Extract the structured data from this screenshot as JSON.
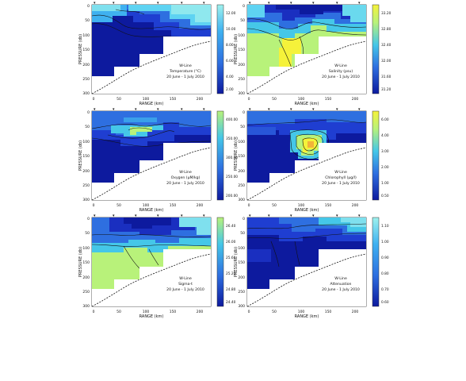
{
  "chart_data": [
    {
      "type": "heatmap",
      "name": "temperature",
      "ylabel": "PRESSURE (db)",
      "xlabel": "RANGE (km)",
      "annotation": [
        "W-Line",
        "Temperature (°C)",
        "20 June - 1 July 2010"
      ],
      "xticks": [
        "0",
        "50",
        "100",
        "150",
        "200"
      ],
      "yticks": [
        "0",
        "50",
        "100",
        "150",
        "200",
        "250",
        "300"
      ],
      "colorbar_ticks": [
        "12.00",
        "10.00",
        "8.00",
        "6.00",
        "4.00",
        "2.00"
      ],
      "colorscale": [
        "#0d1a9e",
        "#2e6fe0",
        "#3fb1f0",
        "#9ef2ee"
      ],
      "xlim": [
        0,
        220
      ],
      "ylim": [
        0,
        300
      ]
    },
    {
      "type": "heatmap",
      "name": "salinity",
      "ylabel": "PRESSURE (db)",
      "xlabel": "RANGE (km)",
      "annotation": [
        "W-Line",
        "Salinity (psu)",
        "20 June - 1 July 2010"
      ],
      "xticks": [
        "0",
        "50",
        "100",
        "150",
        "200"
      ],
      "yticks": [
        "0",
        "50",
        "100",
        "150",
        "200",
        "250",
        "300"
      ],
      "colorbar_ticks": [
        "33.20",
        "32.80",
        "32.40",
        "32.00",
        "31.60",
        "31.20"
      ],
      "colorscale": [
        "#0d1a9e",
        "#2e6fe0",
        "#45c7e8",
        "#b8f27a",
        "#f5f23a"
      ],
      "xlim": [
        0,
        220
      ],
      "ylim": [
        0,
        300
      ]
    },
    {
      "type": "heatmap",
      "name": "oxygen",
      "ylabel": "PRESSURE (db)",
      "xlabel": "RANGE (km)",
      "annotation": [
        "W-Line",
        "Oxygen (µM/kg)",
        "20 June - 1 July 2010"
      ],
      "xticks": [
        "0",
        "50",
        "100",
        "150",
        "200"
      ],
      "yticks": [
        "0",
        "50",
        "100",
        "150",
        "200",
        "250",
        "300"
      ],
      "colorbar_ticks": [
        "400.00",
        "350.00",
        "300.00",
        "250.00",
        "200.00"
      ],
      "colorscale": [
        "#0d1a9e",
        "#2e6fe0",
        "#45c7e8",
        "#b8f27a"
      ],
      "xlim": [
        0,
        220
      ],
      "ylim": [
        0,
        300
      ]
    },
    {
      "type": "heatmap",
      "name": "chlorophyll",
      "ylabel": "PRESSURE (db)",
      "xlabel": "RANGE (km)",
      "annotation": [
        "W-Line",
        "Chlorophyll (µg/l)",
        "20 June - 1 July 2010"
      ],
      "xticks": [
        "0",
        "50",
        "100",
        "150",
        "200"
      ],
      "yticks": [
        "0",
        "50",
        "100",
        "150",
        "200",
        "250",
        "300"
      ],
      "colorbar_ticks": [
        "6.00",
        "4.00",
        "3.00",
        "2.00",
        "1.00",
        "0.50"
      ],
      "colorscale": [
        "#0d1a9e",
        "#2e6fe0",
        "#45c7e8",
        "#b8f27a",
        "#f5f23a"
      ],
      "xlim": [
        0,
        220
      ],
      "ylim": [
        0,
        300
      ]
    },
    {
      "type": "heatmap",
      "name": "sigma-t",
      "ylabel": "PRESSURE (db)",
      "xlabel": "RANGE (km)",
      "annotation": [
        "W-Line",
        "Sigma-t",
        "20 June - 1 July 2010"
      ],
      "xticks": [
        "0",
        "50",
        "100",
        "150",
        "200"
      ],
      "yticks": [
        "0",
        "50",
        "100",
        "150",
        "200",
        "250",
        "300"
      ],
      "colorbar_ticks": [
        "26.40",
        "26.00",
        "25.60",
        "25.20",
        "24.80",
        "24.40"
      ],
      "colorscale": [
        "#0d1a9e",
        "#2e6fe0",
        "#45c7e8",
        "#b8f27a"
      ],
      "xlim": [
        0,
        220
      ],
      "ylim": [
        0,
        300
      ]
    },
    {
      "type": "heatmap",
      "name": "attenuation",
      "ylabel": "PRESSURE (db)",
      "xlabel": "RANGE (km)",
      "annotation": [
        "W-Line",
        "Attenuation",
        "20 June - 1 July 2010"
      ],
      "xticks": [
        "0",
        "50",
        "100",
        "150",
        "200"
      ],
      "yticks": [
        "0",
        "50",
        "100",
        "150",
        "200",
        "250",
        "300"
      ],
      "colorbar_ticks": [
        "1.10",
        "1.00",
        "0.90",
        "0.80",
        "0.70",
        "0.60"
      ],
      "colorscale": [
        "#0d1a9e",
        "#2e6fe0",
        "#45c7e8",
        "#9ef2ee"
      ],
      "xlim": [
        0,
        220
      ],
      "ylim": [
        0,
        300
      ]
    }
  ]
}
